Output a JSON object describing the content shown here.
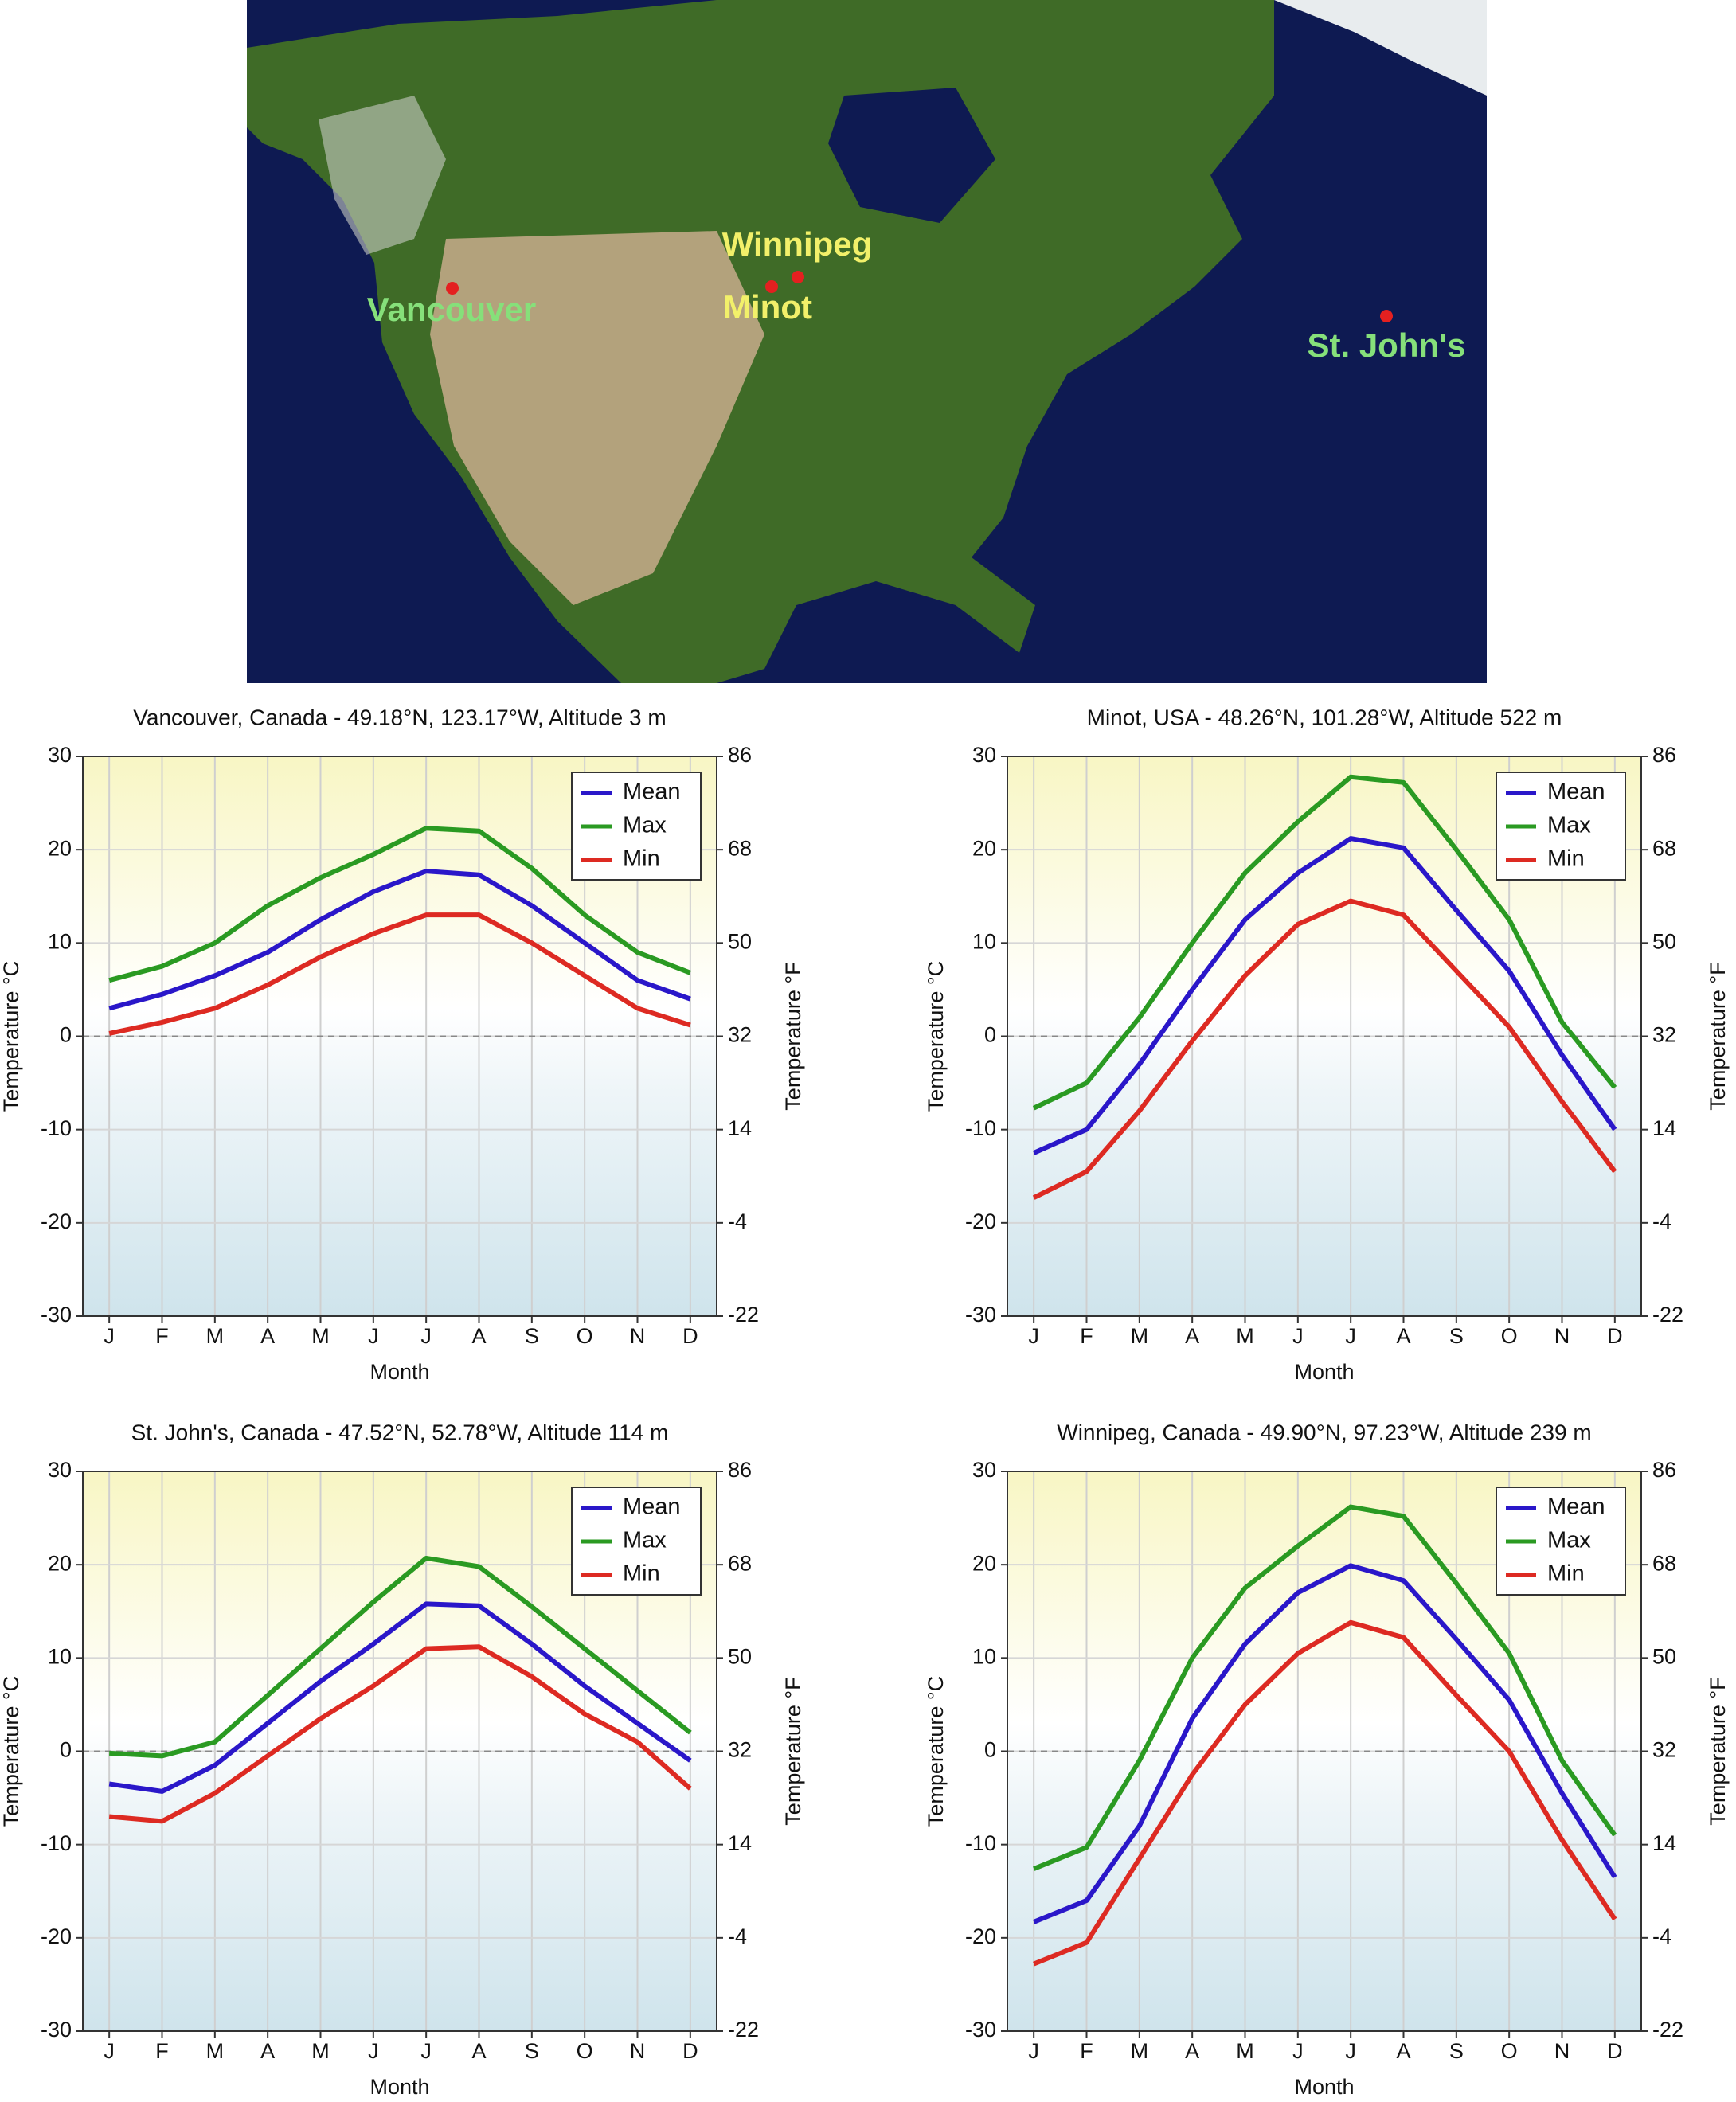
{
  "map": {
    "labels": [
      "Vancouver",
      "Winnipeg",
      "Minot",
      "St. John's"
    ]
  },
  "chart_data": [
    {
      "type": "line",
      "title": "Vancouver, Canada - 49.18°N, 123.17°W, Altitude 3 m",
      "x_label": "Month",
      "y_label": "Temperature °C",
      "y2_label": "Temperature °F",
      "categories": [
        "J",
        "F",
        "M",
        "A",
        "M",
        "J",
        "J",
        "A",
        "S",
        "O",
        "N",
        "D"
      ],
      "series": [
        {
          "name": "Mean",
          "color": "#2a17c9",
          "values": [
            3,
            4.5,
            6.5,
            9,
            12.5,
            15.5,
            17.7,
            17.3,
            14,
            10,
            6,
            4
          ]
        },
        {
          "name": "Max",
          "color": "#2a9a22",
          "values": [
            6,
            7.5,
            10,
            14,
            17,
            19.5,
            22.3,
            22,
            18,
            13,
            9,
            6.8
          ]
        },
        {
          "name": "Min",
          "color": "#dd2a22",
          "values": [
            0.3,
            1.5,
            3,
            5.5,
            8.5,
            11,
            13,
            13,
            10,
            6.5,
            3,
            1.2
          ]
        }
      ],
      "ylim": [
        -30,
        30
      ],
      "yticks": [
        -30,
        -20,
        -10,
        0,
        10,
        20,
        30
      ],
      "y2lim": [
        -22,
        86
      ],
      "y2ticks": [
        -22,
        -4,
        14,
        32,
        50,
        68,
        86
      ],
      "grid": true,
      "legend": "upper right"
    },
    {
      "type": "line",
      "title": "Minot, USA - 48.26°N, 101.28°W, Altitude 522 m",
      "x_label": "Month",
      "y_label": "Temperature °C",
      "y2_label": "Temperature °F",
      "categories": [
        "J",
        "F",
        "M",
        "A",
        "M",
        "J",
        "J",
        "A",
        "S",
        "O",
        "N",
        "D"
      ],
      "series": [
        {
          "name": "Mean",
          "color": "#2a17c9",
          "values": [
            -12.5,
            -10,
            -3,
            5,
            12.5,
            17.5,
            21.2,
            20.2,
            13.5,
            7,
            -2,
            -10
          ]
        },
        {
          "name": "Max",
          "color": "#2a9a22",
          "values": [
            -7.7,
            -5,
            2,
            10,
            17.5,
            23,
            27.8,
            27.2,
            20,
            12.5,
            1.5,
            -5.5
          ]
        },
        {
          "name": "Min",
          "color": "#dd2a22",
          "values": [
            -17.3,
            -14.5,
            -8,
            -0.5,
            6.5,
            12,
            14.5,
            13,
            7,
            1,
            -7,
            -14.5
          ]
        }
      ],
      "ylim": [
        -30,
        30
      ],
      "yticks": [
        -30,
        -20,
        -10,
        0,
        10,
        20,
        30
      ],
      "y2lim": [
        -22,
        86
      ],
      "y2ticks": [
        -22,
        -4,
        14,
        32,
        50,
        68,
        86
      ],
      "grid": true,
      "legend": "upper right"
    },
    {
      "type": "line",
      "title": "St. John's, Canada - 47.52°N, 52.78°W, Altitude 114 m",
      "x_label": "Month",
      "y_label": "Temperature °C",
      "y2_label": "Temperature °F",
      "categories": [
        "J",
        "F",
        "M",
        "A",
        "M",
        "J",
        "J",
        "A",
        "S",
        "O",
        "N",
        "D"
      ],
      "series": [
        {
          "name": "Mean",
          "color": "#2a17c9",
          "values": [
            -3.5,
            -4.3,
            -1.5,
            3,
            7.5,
            11.5,
            15.8,
            15.6,
            11.5,
            7,
            3,
            -1
          ]
        },
        {
          "name": "Max",
          "color": "#2a9a22",
          "values": [
            -0.2,
            -0.5,
            1,
            6,
            11,
            16,
            20.7,
            19.8,
            15.5,
            11,
            6.5,
            2
          ]
        },
        {
          "name": "Min",
          "color": "#dd2a22",
          "values": [
            -7,
            -7.5,
            -4.5,
            -0.5,
            3.5,
            7,
            11,
            11.2,
            8,
            4,
            1,
            -4
          ]
        }
      ],
      "ylim": [
        -30,
        30
      ],
      "yticks": [
        -30,
        -20,
        -10,
        0,
        10,
        20,
        30
      ],
      "y2lim": [
        -22,
        86
      ],
      "y2ticks": [
        -22,
        -4,
        14,
        32,
        50,
        68,
        86
      ],
      "grid": true,
      "legend": "upper right"
    },
    {
      "type": "line",
      "title": "Winnipeg, Canada - 49.90°N, 97.23°W, Altitude 239 m",
      "x_label": "Month",
      "y_label": "Temperature °C",
      "y2_label": "Temperature °F",
      "categories": [
        "J",
        "F",
        "M",
        "A",
        "M",
        "J",
        "J",
        "A",
        "S",
        "O",
        "N",
        "D"
      ],
      "series": [
        {
          "name": "Mean",
          "color": "#2a17c9",
          "values": [
            -18.3,
            -16,
            -8,
            3.5,
            11.5,
            17,
            19.9,
            18.3,
            12,
            5.5,
            -4.5,
            -13.5
          ]
        },
        {
          "name": "Max",
          "color": "#2a9a22",
          "values": [
            -12.6,
            -10.3,
            -1,
            10,
            17.5,
            22,
            26.2,
            25.2,
            18,
            10.5,
            -1,
            -9
          ]
        },
        {
          "name": "Min",
          "color": "#dd2a22",
          "values": [
            -22.8,
            -20.5,
            -11.5,
            -2.5,
            5,
            10.5,
            13.8,
            12.2,
            6,
            0,
            -9.5,
            -18
          ]
        }
      ],
      "ylim": [
        -30,
        30
      ],
      "yticks": [
        -30,
        -20,
        -10,
        0,
        10,
        20,
        30
      ],
      "y2lim": [
        -22,
        86
      ],
      "y2ticks": [
        -22,
        -4,
        14,
        32,
        50,
        68,
        86
      ],
      "grid": true,
      "legend": "upper right"
    }
  ]
}
